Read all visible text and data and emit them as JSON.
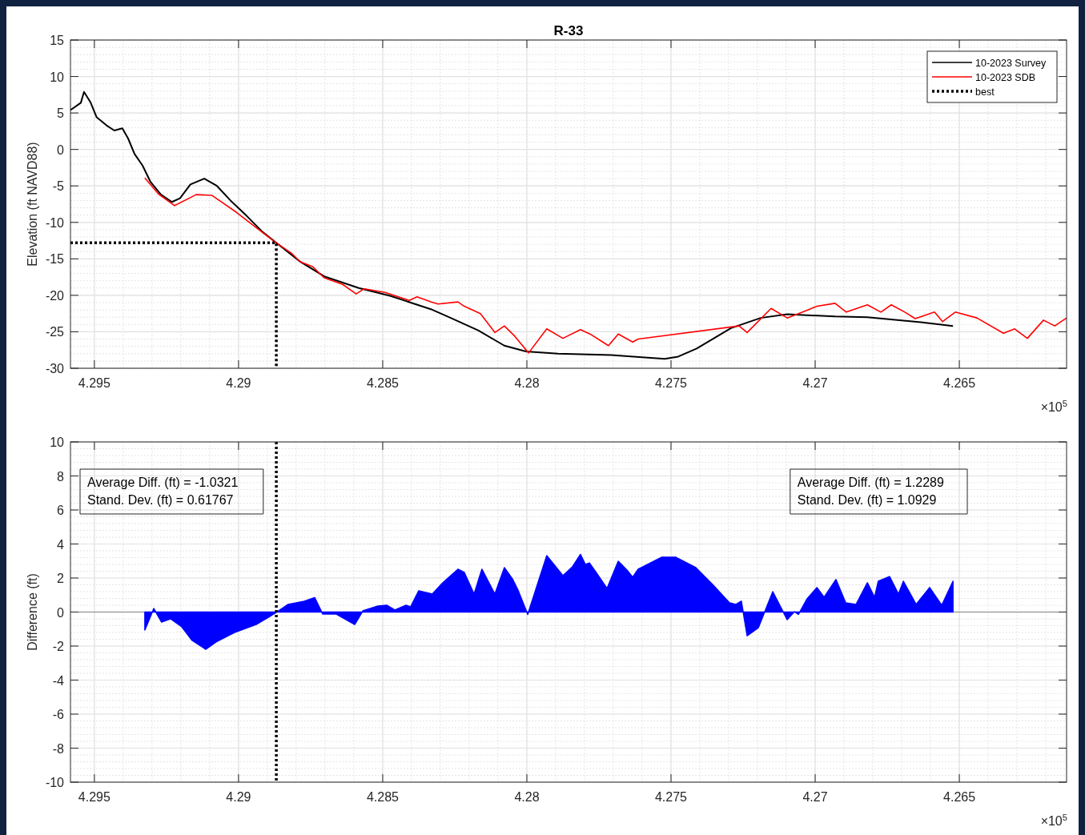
{
  "chart_data": [
    {
      "type": "line",
      "title": "R-33",
      "ylabel": "Elevation (ft NAVD88)",
      "xlim": [
        4.29583,
        4.26128
      ],
      "xticks": [
        4.295,
        4.29,
        4.285,
        4.28,
        4.275,
        4.27,
        4.265
      ],
      "ylim": [
        -30,
        15
      ],
      "yticks": [
        -30,
        -25,
        -20,
        -15,
        -10,
        -5,
        0,
        5,
        10,
        15
      ],
      "grid": true,
      "legend": "top right",
      "annotations": [
        "×10$^{5}$"
      ],
      "series": [
        {
          "name": "10-2023 Survey",
          "color": "#000000",
          "x": [
            4.29583,
            4.29547,
            4.29536,
            4.29514,
            4.29492,
            4.29458,
            4.29431,
            4.29403,
            4.29383,
            4.29361,
            4.29333,
            4.29306,
            4.29269,
            4.29231,
            4.29203,
            4.29167,
            4.29119,
            4.29075,
            4.29028,
            4.28972,
            4.28917,
            4.28869,
            4.28786,
            4.28703,
            4.28583,
            4.28472,
            4.28333,
            4.28264,
            4.28169,
            4.28078,
            4.28003,
            4.27892,
            4.27708,
            4.27522,
            4.27475,
            4.27411,
            4.27292,
            4.27189,
            4.27097,
            4.26931,
            4.26819,
            4.26633,
            4.26522
          ],
          "values": [
            5.4,
            6.4,
            7.9,
            6.5,
            4.4,
            3.3,
            2.6,
            2.9,
            1.5,
            -0.6,
            -2.2,
            -4.4,
            -6.2,
            -7.2,
            -6.7,
            -4.8,
            -4,
            -5,
            -7,
            -9.1,
            -11.3,
            -12.8,
            -15.4,
            -17.4,
            -19,
            -20.1,
            -21.9,
            -23.1,
            -24.8,
            -26.9,
            -27.7,
            -28,
            -28.2,
            -28.7,
            -28.4,
            -27.3,
            -24.5,
            -23.1,
            -22.6,
            -22.9,
            -23,
            -23.7,
            -24.2
          ]
        },
        {
          "name": "10-2023 SDB",
          "color": "#ff0000",
          "x": [
            4.29325,
            4.29278,
            4.29222,
            4.29147,
            4.29092,
            4.29008,
            4.28936,
            4.28869,
            4.28814,
            4.28786,
            4.28742,
            4.28703,
            4.28639,
            4.28592,
            4.28564,
            4.28492,
            4.28408,
            4.28381,
            4.28333,
            4.28308,
            4.28239,
            4.28217,
            4.28161,
            4.28111,
            4.28078,
            4.28042,
            4.27994,
            4.27931,
            4.27875,
            4.27814,
            4.27781,
            4.27717,
            4.27683,
            4.27633,
            4.27614,
            4.27264,
            4.27236,
            4.27153,
            4.27097,
            4.27031,
            4.26994,
            4.26931,
            4.26892,
            4.26819,
            4.26772,
            4.26736,
            4.26689,
            4.26653,
            4.26586,
            4.26558,
            4.26514,
            4.26439,
            4.26347,
            4.26308,
            4.26264,
            4.26208,
            4.26169,
            4.26128
          ],
          "values": [
            -3.9,
            -6.1,
            -7.7,
            -6.2,
            -6.3,
            -8.6,
            -10.8,
            -12.8,
            -14.3,
            -15.4,
            -16.1,
            -17.6,
            -18.5,
            -19.8,
            -19.1,
            -19.6,
            -20.7,
            -20.2,
            -20.9,
            -21.2,
            -20.9,
            -21.5,
            -22.5,
            -25.1,
            -24.2,
            -25.6,
            -27.9,
            -24.6,
            -25.9,
            -24.7,
            -25.3,
            -26.9,
            -25.3,
            -26.4,
            -26,
            -24.2,
            -25.1,
            -21.8,
            -23.1,
            -22.1,
            -21.5,
            -21.1,
            -22.3,
            -21.3,
            -22.3,
            -21.3,
            -22.3,
            -23.2,
            -22.3,
            -23.6,
            -22.3,
            -23.1,
            -25.2,
            -24.6,
            -25.9,
            -23.4,
            -24.2,
            -23.1
          ]
        },
        {
          "name": "best",
          "color": "#000000",
          "line_style": "dotted",
          "x": [
            4.29583,
            4.28869,
            4.28869
          ],
          "values": [
            -12.8,
            -12.8,
            -30
          ]
        }
      ]
    },
    {
      "type": "area",
      "ylabel": "Difference (ft)",
      "xlim": [
        4.29583,
        4.26128
      ],
      "xticks": [
        4.295,
        4.29,
        4.285,
        4.28,
        4.275,
        4.27,
        4.265
      ],
      "ylim": [
        -10,
        10
      ],
      "yticks": [
        -10,
        -8,
        -6,
        -4,
        -2,
        0,
        2,
        4,
        6,
        8,
        10
      ],
      "grid": true,
      "annotations": [
        "Average Diff. (ft) = -1.0321\nStand. Dev. (ft) = 0.61767",
        "Average Diff. (ft) = 1.2289\nStand. Dev. (ft) = 1.0929",
        "×10$^{5}$"
      ],
      "ref_lines": [
        {
          "axis": "y",
          "value": 0,
          "color": "#808080",
          "line_style": "solid"
        },
        {
          "axis": "x",
          "value": 4.28869,
          "color": "#000000",
          "line_style": "dotted"
        }
      ],
      "series": [
        {
          "color": "#0000ff",
          "x": [
            4.29325,
            4.29294,
            4.29267,
            4.29236,
            4.29197,
            4.29161,
            4.29114,
            4.29078,
            4.29014,
            4.28939,
            4.28892,
            4.28869,
            4.28828,
            4.28772,
            4.28736,
            4.28708,
            4.28661,
            4.28597,
            4.28569,
            4.28517,
            4.28486,
            4.28458,
            4.28419,
            4.28403,
            4.28375,
            4.28328,
            4.28292,
            4.28239,
            4.28217,
            4.28183,
            4.28156,
            4.28111,
            4.28078,
            4.2805,
            4.28031,
            4.27997,
            4.27931,
            4.27875,
            4.27842,
            4.27814,
            4.27797,
            4.27783,
            4.27758,
            4.27722,
            4.27683,
            4.27653,
            4.27633,
            4.27614,
            4.27533,
            4.27483,
            4.27414,
            4.27356,
            4.27297,
            4.27275,
            4.27256,
            4.27236,
            4.27197,
            4.27147,
            4.27097,
            4.27072,
            4.27058,
            4.27028,
            4.26994,
            4.26969,
            4.26928,
            4.26894,
            4.26858,
            4.26819,
            4.26794,
            4.26781,
            4.26742,
            4.26711,
            4.26694,
            4.2665,
            4.26603,
            4.26561,
            4.26522
          ],
          "values": [
            -1.06,
            0.21,
            -0.59,
            -0.4,
            -0.87,
            -1.67,
            -2.19,
            -1.76,
            -1.2,
            -0.73,
            -0.26,
            -0.02,
            0.45,
            0.64,
            0.85,
            -0.12,
            -0.12,
            -0.73,
            0.07,
            0.35,
            0.4,
            0.12,
            0.4,
            0.31,
            1.25,
            1.06,
            1.72,
            2.52,
            2.33,
            1.06,
            2.52,
            1.06,
            2.61,
            1.95,
            1.3,
            -0.14,
            3.32,
            2.14,
            2.66,
            3.39,
            2.8,
            2.89,
            2.28,
            1.39,
            2.99,
            2.47,
            2.05,
            2.52,
            3.22,
            3.22,
            2.61,
            1.62,
            0.54,
            0.45,
            0.64,
            -1.39,
            -0.92,
            1.2,
            -0.45,
            0.02,
            -0.14,
            0.78,
            1.44,
            0.87,
            1.91,
            0.54,
            0.45,
            1.72,
            0.87,
            1.81,
            2.09,
            1.06,
            1.81,
            0.45,
            1.44,
            0.4,
            1.81
          ]
        }
      ]
    }
  ]
}
